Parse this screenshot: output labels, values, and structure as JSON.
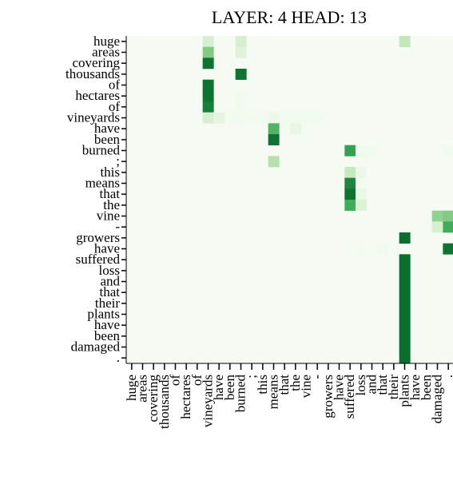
{
  "chart_data": {
    "type": "heatmap",
    "title": "LAYER: 4 HEAD: 13",
    "tokens": [
      "huge",
      "areas",
      "covering",
      "thousands",
      "of",
      "hectares",
      "of",
      "vineyards",
      "have",
      "been",
      "burned",
      ";",
      "this",
      "means",
      "that",
      "the",
      "vine",
      "-",
      "growers",
      "have",
      "suffered",
      "loss",
      "and",
      "that",
      "their",
      "plants",
      "have",
      "been",
      "damaged",
      "."
    ],
    "colormap": "Greens",
    "value_range": [
      0,
      1
    ],
    "background_value": 0.02,
    "cells": [
      [
        0,
        7,
        0.22
      ],
      [
        0,
        10,
        0.22
      ],
      [
        0,
        25,
        0.32
      ],
      [
        1,
        7,
        0.55
      ],
      [
        1,
        10,
        0.18
      ],
      [
        2,
        7,
        0.95
      ],
      [
        3,
        10,
        0.95
      ],
      [
        4,
        7,
        0.95
      ],
      [
        5,
        7,
        0.95
      ],
      [
        5,
        10,
        0.04
      ],
      [
        6,
        7,
        0.92
      ],
      [
        6,
        10,
        0.04
      ],
      [
        7,
        7,
        0.22
      ],
      [
        7,
        8,
        0.15
      ],
      [
        7,
        9,
        0.05
      ],
      [
        7,
        10,
        0.05
      ],
      [
        7,
        11,
        0.04
      ],
      [
        7,
        12,
        0.04
      ],
      [
        7,
        13,
        0.08
      ],
      [
        7,
        14,
        0.05
      ],
      [
        7,
        15,
        0.04
      ],
      [
        7,
        16,
        0.04
      ],
      [
        7,
        17,
        0.05
      ],
      [
        8,
        13,
        0.7
      ],
      [
        8,
        15,
        0.12
      ],
      [
        9,
        13,
        0.95
      ],
      [
        10,
        20,
        0.8
      ],
      [
        10,
        21,
        0.06
      ],
      [
        10,
        22,
        0.05
      ],
      [
        10,
        29,
        0.05
      ],
      [
        11,
        13,
        0.38
      ],
      [
        12,
        20,
        0.3
      ],
      [
        12,
        21,
        0.1
      ],
      [
        13,
        20,
        0.9
      ],
      [
        13,
        21,
        0.03
      ],
      [
        14,
        20,
        0.95
      ],
      [
        14,
        21,
        0.1
      ],
      [
        15,
        20,
        0.75
      ],
      [
        15,
        21,
        0.2
      ],
      [
        16,
        28,
        0.5
      ],
      [
        16,
        29,
        0.55
      ],
      [
        17,
        28,
        0.22
      ],
      [
        17,
        29,
        0.75
      ],
      [
        18,
        25,
        0.97
      ],
      [
        19,
        21,
        0.03
      ],
      [
        19,
        23,
        0.04
      ],
      [
        19,
        29,
        0.95
      ],
      [
        20,
        25,
        0.97
      ],
      [
        21,
        25,
        0.97
      ],
      [
        22,
        25,
        0.97
      ],
      [
        23,
        25,
        0.97
      ],
      [
        24,
        25,
        0.97
      ],
      [
        25,
        25,
        0.97
      ],
      [
        26,
        25,
        0.97
      ],
      [
        27,
        25,
        0.97
      ],
      [
        28,
        25,
        0.97
      ],
      [
        29,
        25,
        0.97
      ]
    ]
  }
}
